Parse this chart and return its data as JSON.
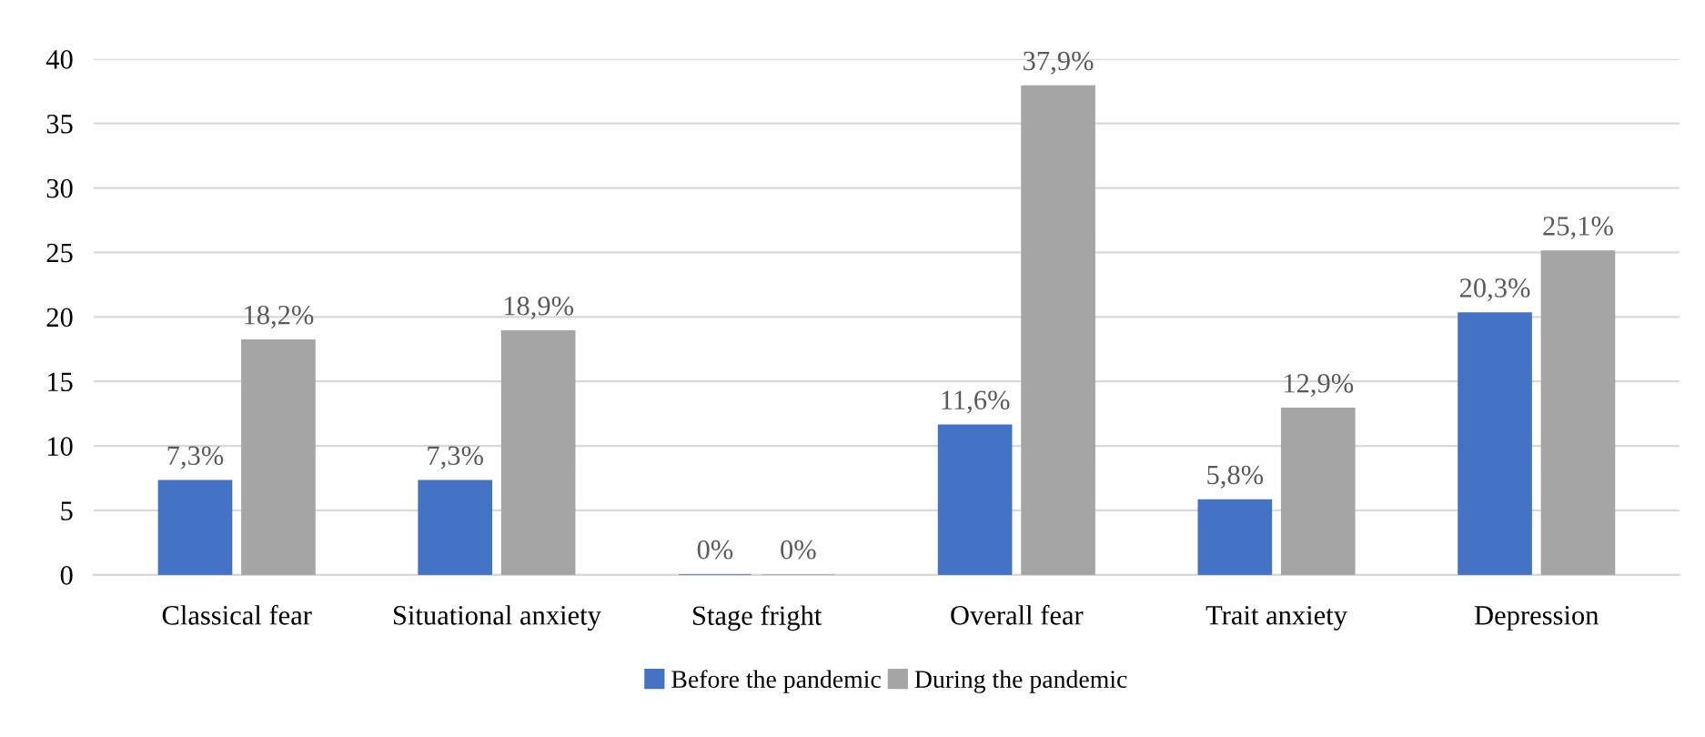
{
  "chart_data": {
    "type": "bar",
    "categories": [
      "Classical fear",
      "Situational anxiety",
      "Stage fright",
      "Overall fear",
      "Trait anxiety",
      "Depression"
    ],
    "series": [
      {
        "name": "Before the pandemic",
        "color": "#4472c4",
        "values": [
          7.3,
          7.3,
          0,
          11.6,
          5.8,
          20.3
        ],
        "value_labels": [
          "7,3%",
          "7,3%",
          "0%",
          "11,6%",
          "5,8%",
          "20,3%"
        ]
      },
      {
        "name": "During the pandemic",
        "color": "#a5a5a5",
        "values": [
          18.2,
          18.9,
          0,
          37.9,
          12.9,
          25.1
        ],
        "value_labels": [
          "18,2%",
          "18,9%",
          "0%",
          "37,9%",
          "12,9%",
          "25,1%"
        ]
      }
    ],
    "ylim": [
      0,
      40
    ],
    "yticks": [
      0,
      5,
      10,
      15,
      20,
      25,
      30,
      35,
      40
    ],
    "grid": "y",
    "legend": "bottom"
  }
}
